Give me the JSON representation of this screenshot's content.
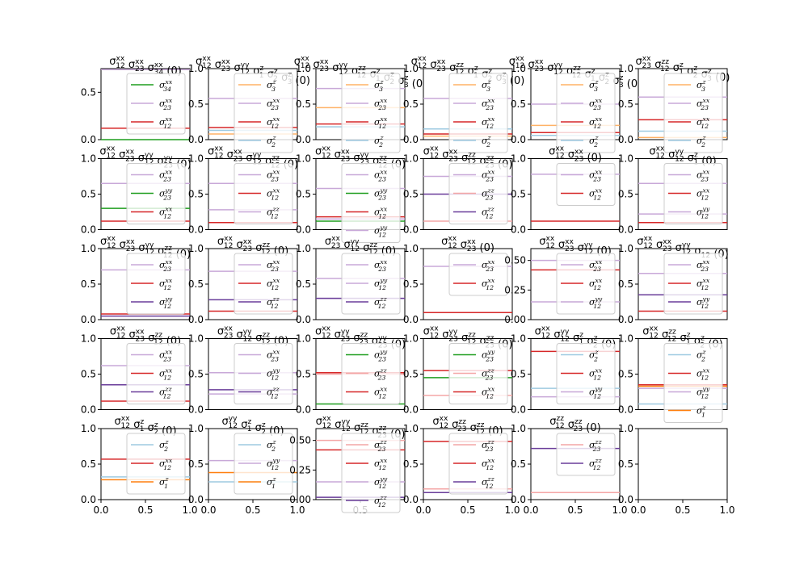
{
  "colors": {
    "c0": "#1f9e1f",
    "c1": "#c8a8d8",
    "c2": "#d62728",
    "c3": "#ffb266",
    "c4": "#9ecae1",
    "c5": "#f4a6a6",
    "c6": "#6a3d9a",
    "c7": "#ff7f0e"
  },
  "chart_data": [
    {
      "type": "line",
      "title": "σ12^xx σ23^xx σ34^xx (0)",
      "ylim": [
        0,
        0.75
      ],
      "yticks": [
        "0.0",
        "0.5"
      ],
      "xticks": [],
      "series": [
        {
          "name": "σ34^xx",
          "color": "c0",
          "y": 0.0
        },
        {
          "name": "σ23^xx",
          "color": "c1",
          "y": 0.74
        },
        {
          "name": "σ12^xx",
          "color": "c2",
          "y": 0.12
        }
      ]
    },
    {
      "type": "line",
      "title": "σ12^xx σ23^xx σ12^yy σ1^z σ2^z σ3^z (0)",
      "ylim": [
        0,
        1.0
      ],
      "yticks": [
        "0.0",
        "0.5",
        "1.0"
      ],
      "xticks": [],
      "series": [
        {
          "name": "σ3^z",
          "color": "c3",
          "y": 0.08
        },
        {
          "name": "σ23^xx",
          "color": "c1",
          "y": 0.58
        },
        {
          "name": "σ12^xx",
          "color": "c2",
          "y": 0.17
        },
        {
          "name": "σ2^z",
          "color": "c4",
          "y": 0.13
        }
      ]
    },
    {
      "type": "line",
      "title": "σ12^xx σ23^xx σ12^yy σ12^zz σ1^z σ2^z σ3^z (0)",
      "ylim": [
        0,
        1.0
      ],
      "yticks": [
        "0.0",
        "0.5",
        "1.0"
      ],
      "xticks": [],
      "series": [
        {
          "name": "σ3^z",
          "color": "c3",
          "y": 0.45
        },
        {
          "name": "σ23^xx",
          "color": "c1",
          "y": 0.72
        },
        {
          "name": "σ12^xx",
          "color": "c2",
          "y": 0.22
        },
        {
          "name": "σ2^z",
          "color": "c4",
          "y": 0.18
        }
      ]
    },
    {
      "type": "line",
      "title": "σ12^xx σ23^xx σ12^zz σ1^z σ2^z σ3^z (0)",
      "ylim": [
        0,
        1.0
      ],
      "yticks": [
        "0.0",
        "0.5",
        "1.0"
      ],
      "xticks": [],
      "series": [
        {
          "name": "σ3^z",
          "color": "c3",
          "y": 0.05
        },
        {
          "name": "σ23^xx",
          "color": "c1",
          "y": 0.58
        },
        {
          "name": "σ12^xx",
          "color": "c2",
          "y": 0.08
        },
        {
          "name": "σ2^z",
          "color": "c4",
          "y": 0.15
        }
      ]
    },
    {
      "type": "line",
      "title": "σ12^xx σ23^xx σ12^yy σ12^zz σ1^z σ2^z σ3^z (0)",
      "ylim": [
        0,
        1.0
      ],
      "yticks": [
        "0.0",
        "0.5",
        "1.0"
      ],
      "xticks": [],
      "series": [
        {
          "name": "σ3^z",
          "color": "c3",
          "y": 0.2
        },
        {
          "name": "σ23^xx",
          "color": "c1",
          "y": 0.5
        },
        {
          "name": "σ12^xx",
          "color": "c2",
          "y": 0.1
        },
        {
          "name": "σ2^z",
          "color": "c4",
          "y": 0.06
        }
      ]
    },
    {
      "type": "line",
      "title": "σ23^xx σ12^zz σ1^z σ2^z σ3^z (0)",
      "ylim": [
        0,
        1.0
      ],
      "yticks": [
        "0.0",
        "0.5",
        "1.0"
      ],
      "xticks": [],
      "series": [
        {
          "name": "σ3^z",
          "color": "c3",
          "y": 0.03
        },
        {
          "name": "σ23^xx",
          "color": "c1",
          "y": 0.6
        },
        {
          "name": "σ12^xx",
          "color": "c2",
          "y": 0.28
        },
        {
          "name": "σ2^z",
          "color": "c4",
          "y": 0.12
        }
      ]
    },
    {
      "type": "line",
      "title": "σ12^xx σ23^xx σ12^yy σ23^yy (0)",
      "ylim": [
        0,
        1.0
      ],
      "yticks": [
        "0.0",
        "0.5",
        "1.0"
      ],
      "xticks": [],
      "series": [
        {
          "name": "σ23^xx",
          "color": "c1",
          "y": 0.65
        },
        {
          "name": "σ23^yy",
          "color": "c0",
          "y": 0.3
        },
        {
          "name": "σ12^xx",
          "color": "c2",
          "y": 0.12
        }
      ]
    },
    {
      "type": "line",
      "title": "σ12^xx σ23^xx σ12^yy σ12^zz (0)",
      "ylim": [
        0,
        1.0
      ],
      "yticks": [
        "0.0",
        "0.5",
        "1.0"
      ],
      "xticks": [],
      "series": [
        {
          "name": "σ23^xx",
          "color": "c1",
          "y": 0.65
        },
        {
          "name": "σ12^xx",
          "color": "c2",
          "y": 0.1
        },
        {
          "name": "σ12^zz",
          "color": "c1",
          "y": 0.28
        }
      ]
    },
    {
      "type": "line",
      "title": "σ12^xx σ23^xx σ23^yy σ12^zz (0)",
      "ylim": [
        0,
        1.0
      ],
      "yticks": [
        "0.0",
        "0.5",
        "1.0"
      ],
      "xticks": [],
      "series": [
        {
          "name": "σ23^xx",
          "color": "c1",
          "y": 0.58
        },
        {
          "name": "σ23^yy",
          "color": "c0",
          "y": 0.12
        },
        {
          "name": "σ12^xx",
          "color": "c2",
          "y": 0.18
        },
        {
          "name": "σ12^yy",
          "color": "c1",
          "y": 0.15
        }
      ]
    },
    {
      "type": "line",
      "title": "σ12^xx σ23^xx σ12^zz σ23^zz (0)",
      "ylim": [
        0,
        1.0
      ],
      "yticks": [
        "0.0",
        "0.5",
        "1.0"
      ],
      "xticks": [],
      "series": [
        {
          "name": "σ23^xx",
          "color": "c1",
          "y": 0.75
        },
        {
          "name": "σ23^zz",
          "color": "c5",
          "y": 0.12
        },
        {
          "name": "σ12^zz",
          "color": "c6",
          "y": 0.5
        }
      ]
    },
    {
      "type": "line",
      "title": "σ12^xx σ23^xx (0)",
      "ylim": [
        0,
        1.0
      ],
      "yticks": [
        "0.0",
        "0.5",
        "1.0"
      ],
      "xticks": [],
      "series": [
        {
          "name": "σ23^xx",
          "color": "c1",
          "y": 0.78
        },
        {
          "name": "σ12^xx",
          "color": "c2",
          "y": 0.12
        }
      ]
    },
    {
      "type": "line",
      "title": "σ12^xx σ12^yy σ1^z (0)",
      "ylim": [
        0,
        1.0
      ],
      "yticks": [
        "0.0",
        "0.5",
        "1.0"
      ],
      "xticks": [],
      "series": [
        {
          "name": "σ23^xx",
          "color": "c1",
          "y": 0.65
        },
        {
          "name": "σ12^xx",
          "color": "c2",
          "y": 0.1
        },
        {
          "name": "σ12^yy",
          "color": "c1",
          "y": 0.22
        }
      ]
    },
    {
      "type": "line",
      "title": "σ12^xx σ23^xx σ12^yy σ12^zz (0)",
      "ylim": [
        0,
        1.0
      ],
      "yticks": [
        "0.0",
        "0.5",
        "1.0"
      ],
      "xticks": [],
      "series": [
        {
          "name": "σ23^xx",
          "color": "c1",
          "y": 0.7
        },
        {
          "name": "σ12^xx",
          "color": "c2",
          "y": 0.08
        },
        {
          "name": "σ12^yy",
          "color": "c6",
          "y": 0.05
        }
      ]
    },
    {
      "type": "line",
      "title": "σ12^xx σ23^xx σ12^zz (0)",
      "ylim": [
        0,
        1.0
      ],
      "yticks": [
        "0.0",
        "0.5",
        "1.0"
      ],
      "xticks": [],
      "series": [
        {
          "name": "σ23^xx",
          "color": "c1",
          "y": 0.68
        },
        {
          "name": "σ12^xx",
          "color": "c2",
          "y": 0.12
        },
        {
          "name": "σ12^zz",
          "color": "c6",
          "y": 0.28
        }
      ]
    },
    {
      "type": "line",
      "title": "σ23^xx σ12^yy σ12^zz (0)",
      "ylim": [
        0,
        1.0
      ],
      "yticks": [
        "0.0",
        "0.5",
        "1.0"
      ],
      "xticks": [],
      "series": [
        {
          "name": "σ23^xx",
          "color": "c1",
          "y": 0.58
        },
        {
          "name": "σ12^yy",
          "color": "c1",
          "y": 0.3
        },
        {
          "name": "σ12^zz",
          "color": "c6",
          "y": 0.3
        }
      ]
    },
    {
      "type": "line",
      "title": "σ12^xx σ23^xx (0)",
      "ylim": [
        0,
        1.0
      ],
      "yticks": [
        "0.0",
        "0.5",
        "1.0"
      ],
      "xticks": [],
      "series": [
        {
          "name": "σ23^xx",
          "color": "c1",
          "y": 0.75
        },
        {
          "name": "σ12^xx",
          "color": "c2",
          "y": 0.1
        }
      ]
    },
    {
      "type": "line",
      "title": "σ12^xx σ23^xx σ12^yy (0)",
      "ylim": [
        0,
        0.6
      ],
      "yticks": [
        "0.00",
        "0.25",
        "0.50"
      ],
      "xticks": [],
      "series": [
        {
          "name": "σ23^xx",
          "color": "c1",
          "y": 0.5
        },
        {
          "name": "σ12^xx",
          "color": "c2",
          "y": 0.42
        },
        {
          "name": "σ12^yy",
          "color": "c1",
          "y": 0.15
        }
      ]
    },
    {
      "type": "line",
      "title": "σ12^xx σ23^xx σ12^yy σ12 (0)",
      "ylim": [
        0,
        1.0
      ],
      "yticks": [
        "0.0",
        "0.5",
        "1.0"
      ],
      "xticks": [],
      "series": [
        {
          "name": "σ23^xx",
          "color": "c1",
          "y": 0.65
        },
        {
          "name": "σ12^xx",
          "color": "c2",
          "y": 0.12
        },
        {
          "name": "σ12^yy",
          "color": "c6",
          "y": 0.35
        }
      ]
    },
    {
      "type": "line",
      "title": "σ12^xx σ23^xx σ12^zz (0)",
      "ylim": [
        0,
        1.0
      ],
      "yticks": [
        "0.0",
        "0.5",
        "1.0"
      ],
      "xticks": [],
      "series": [
        {
          "name": "σ23^xx",
          "color": "c1",
          "y": 0.62
        },
        {
          "name": "σ12^xx",
          "color": "c2",
          "y": 0.12
        },
        {
          "name": "σ12^zz",
          "color": "c6",
          "y": 0.35
        }
      ]
    },
    {
      "type": "line",
      "title": "σ23^xx σ12^yy σ12^zz (0)",
      "ylim": [
        0,
        1.0
      ],
      "yticks": [
        "0.0",
        "0.5",
        "1.0"
      ],
      "xticks": [],
      "series": [
        {
          "name": "σ23^xx",
          "color": "c1",
          "y": 0.52
        },
        {
          "name": "σ12^yy",
          "color": "c1",
          "y": 0.22
        },
        {
          "name": "σ12^zz",
          "color": "c6",
          "y": 0.28
        }
      ]
    },
    {
      "type": "line",
      "title": "σ12^xx σ23^yy σ23^zz σ23^yy (0)",
      "ylim": [
        0,
        1.0
      ],
      "yticks": [
        "0.0",
        "0.5",
        "1.0"
      ],
      "xticks": [],
      "series": [
        {
          "name": "σ23^yy",
          "color": "c0",
          "y": 0.08
        },
        {
          "name": "σ23^zz",
          "color": "c5",
          "y": 0.5
        },
        {
          "name": "σ12^xx",
          "color": "c2",
          "y": 0.52
        }
      ]
    },
    {
      "type": "line",
      "title": "σ12^xx σ23^yy σ12^zz σ23^zz (0)",
      "ylim": [
        0,
        1.0
      ],
      "yticks": [
        "0.0",
        "0.5",
        "1.0"
      ],
      "xticks": [],
      "series": [
        {
          "name": "σ23^yy",
          "color": "c0",
          "y": 0.45
        },
        {
          "name": "σ23^zz",
          "color": "c5",
          "y": 0.2
        },
        {
          "name": "σ12^xx",
          "color": "c2",
          "y": 0.55
        }
      ]
    },
    {
      "type": "line",
      "title": "σ12^xx σ12^yy σ1^z σ2^z (0)",
      "ylim": [
        0,
        1.0
      ],
      "yticks": [
        "0.0",
        "0.5",
        "1.0"
      ],
      "xticks": [],
      "series": [
        {
          "name": "σ2^z",
          "color": "c4",
          "y": 0.3
        },
        {
          "name": "σ12^xx",
          "color": "c2",
          "y": 0.82
        },
        {
          "name": "σ12^yy",
          "color": "c1",
          "y": 0.18
        }
      ]
    },
    {
      "type": "line",
      "title": "σ12^xx σ12^zz σ1^z σ2^z (0)",
      "ylim": [
        0,
        1.0
      ],
      "yticks": [
        "0.0",
        "0.5",
        "1.0"
      ],
      "xticks": [],
      "series": [
        {
          "name": "σ2^z",
          "color": "c4",
          "y": 0.08
        },
        {
          "name": "σ12^xx",
          "color": "c2",
          "y": 0.35
        },
        {
          "name": "σ12^yy",
          "color": "c1",
          "y": 0.3
        },
        {
          "name": "σ1^z",
          "color": "c7",
          "y": 0.33
        }
      ]
    },
    {
      "type": "line",
      "title": "σ12^xx σ1^z σ2^z (0)",
      "ylim": [
        0,
        1.0
      ],
      "yticks": [
        "0.0",
        "0.5",
        "1.0"
      ],
      "xticks": [
        "0.0",
        "0.5",
        "1.0"
      ],
      "series": [
        {
          "name": "σ2^z",
          "color": "c4",
          "y": 0.32
        },
        {
          "name": "σ12^xx",
          "color": "c2",
          "y": 0.57
        },
        {
          "name": "σ1^z",
          "color": "c7",
          "y": 0.28
        }
      ]
    },
    {
      "type": "line",
      "title": "σ12^yy σ1^z σ2^z (0)",
      "ylim": [
        0,
        1.0
      ],
      "yticks": [
        "0.0",
        "0.5",
        "1.0"
      ],
      "xticks": [
        "0.0",
        "0.5",
        "1.0"
      ],
      "series": [
        {
          "name": "σ2^z",
          "color": "c4",
          "y": 0.25
        },
        {
          "name": "σ12^yy",
          "color": "c1",
          "y": 0.55
        },
        {
          "name": "σ1^z",
          "color": "c7",
          "y": 0.38
        }
      ]
    },
    {
      "type": "line",
      "title": "σ12^xx σ12^yy σ12^zz σ23^zz (0)",
      "ylim": [
        0,
        0.6
      ],
      "yticks": [
        "0.00",
        "0.25",
        "0.50"
      ],
      "xticks": [
        "0.5"
      ],
      "series": [
        {
          "name": "σ23^zz",
          "color": "c5",
          "y": 0.5
        },
        {
          "name": "σ12^xx",
          "color": "c2",
          "y": 0.42
        },
        {
          "name": "σ12^yy",
          "color": "c1",
          "y": 0.15
        },
        {
          "name": "σ12^zz",
          "color": "c6",
          "y": 0.02
        }
      ]
    },
    {
      "type": "line",
      "title": "σ12^xx σ23^zz σ12^zz (0)",
      "ylim": [
        0,
        1.0
      ],
      "yticks": [
        "0.0",
        "0.5",
        "1.0"
      ],
      "xticks": [
        "0.0",
        "0.5",
        "1.0"
      ],
      "series": [
        {
          "name": "σ23^zz",
          "color": "c5",
          "y": 0.15
        },
        {
          "name": "σ12^xx",
          "color": "c2",
          "y": 0.82
        },
        {
          "name": "σ12^zz",
          "color": "c6",
          "y": 0.1
        }
      ]
    },
    {
      "type": "line",
      "title": "σ12^zz σ23^zz (0)",
      "ylim": [
        0,
        1.0
      ],
      "yticks": [
        "0.0",
        "0.5",
        "1.0"
      ],
      "xticks": [
        "0.0",
        "0.5",
        "1.0"
      ],
      "series": [
        {
          "name": "σ23^zz",
          "color": "c5",
          "y": 0.1
        },
        {
          "name": "σ12^zz",
          "color": "c6",
          "y": 0.72
        }
      ]
    },
    {
      "type": "line",
      "title": "",
      "ylim": [
        0,
        1.0
      ],
      "yticks": [
        "0.0",
        "0.5",
        "1.0"
      ],
      "xticks": [
        "0.0",
        "0.5",
        "1.0"
      ],
      "series": []
    }
  ]
}
